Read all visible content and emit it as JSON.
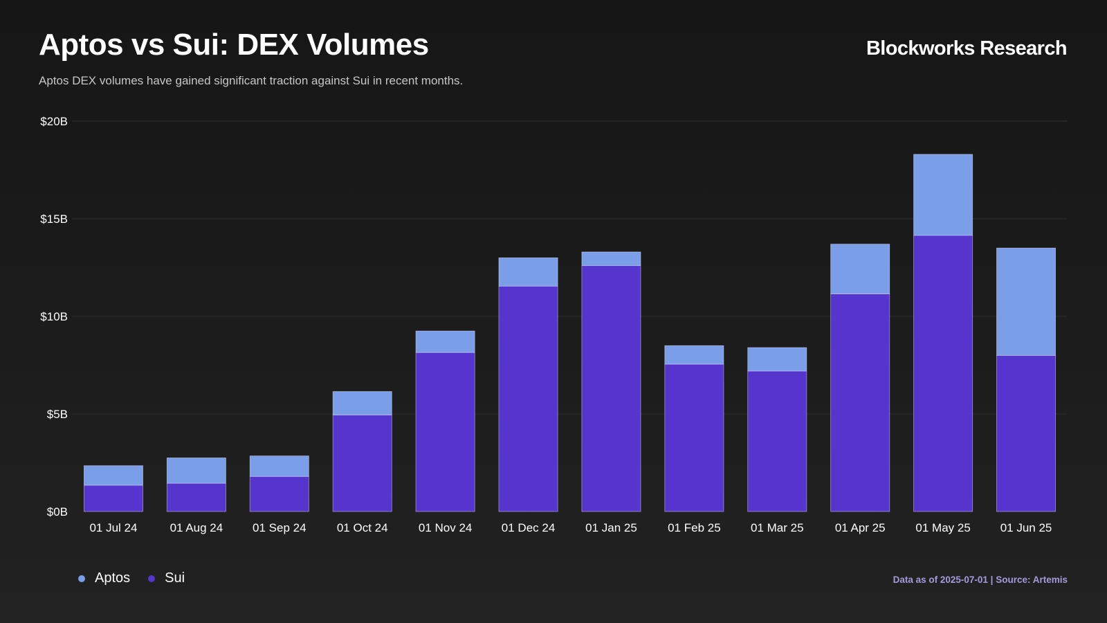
{
  "header": {
    "title": "Aptos vs Sui: DEX Volumes",
    "subtitle": "Aptos DEX volumes have gained significant traction against Sui in recent months.",
    "brand": "Blockworks Research"
  },
  "footer": {
    "source": "Data as of 2025-07-01 | Source: Artemis"
  },
  "colors": {
    "aptos": "#7b9ee8",
    "sui": "#5535cd",
    "grid": "#2f2f2f",
    "tick_text": "#ffffff"
  },
  "chart_data": {
    "type": "bar",
    "stacked": true,
    "title": "Aptos vs Sui: DEX Volumes",
    "xlabel": "",
    "ylabel": "",
    "ylim": [
      0,
      20
    ],
    "y_unit": "billions USD",
    "yticks": [
      0,
      5,
      10,
      15,
      20
    ],
    "ytick_labels": [
      "$0B",
      "$5B",
      "$10B",
      "$15B",
      "$20B"
    ],
    "grid": "horizontal",
    "legend_placement": "bottom-left",
    "categories": [
      "01 Jul 24",
      "01 Aug 24",
      "01 Sep 24",
      "01 Oct 24",
      "01 Nov 24",
      "01 Dec 24",
      "01 Jan 25",
      "01 Feb 25",
      "01 Mar 25",
      "01 Apr 25",
      "01 May 25",
      "01 Jun 25"
    ],
    "series": [
      {
        "name": "Sui",
        "color": "#5535cd",
        "values": [
          1.35,
          1.45,
          1.8,
          4.95,
          8.15,
          11.55,
          12.6,
          7.55,
          7.2,
          11.15,
          14.15,
          8.0
        ]
      },
      {
        "name": "Aptos",
        "color": "#7b9ee8",
        "values": [
          1.0,
          1.3,
          1.05,
          1.2,
          1.1,
          1.45,
          0.7,
          0.95,
          1.2,
          2.55,
          4.15,
          5.5
        ]
      }
    ]
  }
}
